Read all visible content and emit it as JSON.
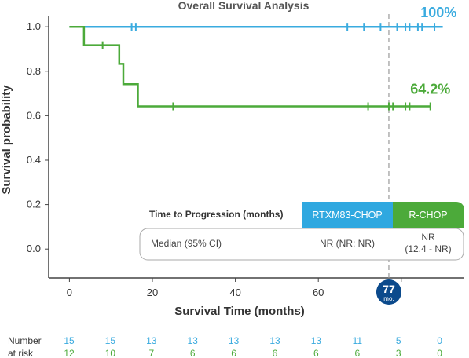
{
  "chart_data": {
    "type": "line",
    "title": "Overall Survival Analysis",
    "xlabel": "Survival Time (months)",
    "ylabel": "Survival probability",
    "xlim": [
      -5,
      95
    ],
    "ylim": [
      -0.13,
      1.05
    ],
    "x_ticks": [
      0,
      20,
      40,
      60,
      80
    ],
    "x_tick_labels": [
      "0",
      "20",
      "40",
      "60",
      ""
    ],
    "y_ticks": [
      0.0,
      0.2,
      0.4,
      0.6,
      0.8,
      1.0
    ],
    "y_tick_labels": [
      "0.0",
      "0.2",
      "0.4",
      "0.6",
      "0.8",
      "1.0"
    ],
    "reference_line": {
      "x": 77,
      "label_value": "77",
      "label_unit": "mo."
    },
    "series": [
      {
        "name": "RTXM83-CHOP",
        "color": "#3aabdf",
        "x": [
          0,
          90
        ],
        "y": [
          1.0,
          1.0
        ],
        "censor_x": [
          15,
          16,
          67,
          71,
          75,
          79,
          81,
          82,
          84,
          85,
          88
        ],
        "end_label": "100%"
      },
      {
        "name": "R-CHOP",
        "color": "#4caa3a",
        "x": [
          0,
          3.5,
          3.5,
          12,
          12,
          13,
          13,
          16.5,
          16.5,
          87
        ],
        "y": [
          1.0,
          1.0,
          0.917,
          0.917,
          0.833,
          0.833,
          0.742,
          0.742,
          0.642,
          0.642
        ],
        "censor_x": [
          8,
          25,
          72,
          77,
          78,
          81,
          82,
          87
        ],
        "end_label": "64.2%"
      }
    ],
    "at_risk": {
      "label_line1": "Number",
      "label_line2": "at risk",
      "x": [
        0,
        10,
        20,
        30,
        40,
        50,
        60,
        70,
        80,
        90
      ],
      "RTXM83-CHOP": [
        "15",
        "15",
        "13",
        "13",
        "13",
        "13",
        "13",
        "11",
        "5",
        "0"
      ],
      "R-CHOP": [
        "12",
        "10",
        "7",
        "6",
        "6",
        "6",
        "6",
        "6",
        "3",
        "0"
      ]
    },
    "table": {
      "title": "Time to Progression  (months)",
      "col1": "RTXM83-CHOP",
      "col2": "R-CHOP",
      "row_label": "Median (95% CI)",
      "val1": "NR (NR; NR)",
      "val2_line1": "NR",
      "val2_line2": "(12.4 - NR)"
    }
  }
}
